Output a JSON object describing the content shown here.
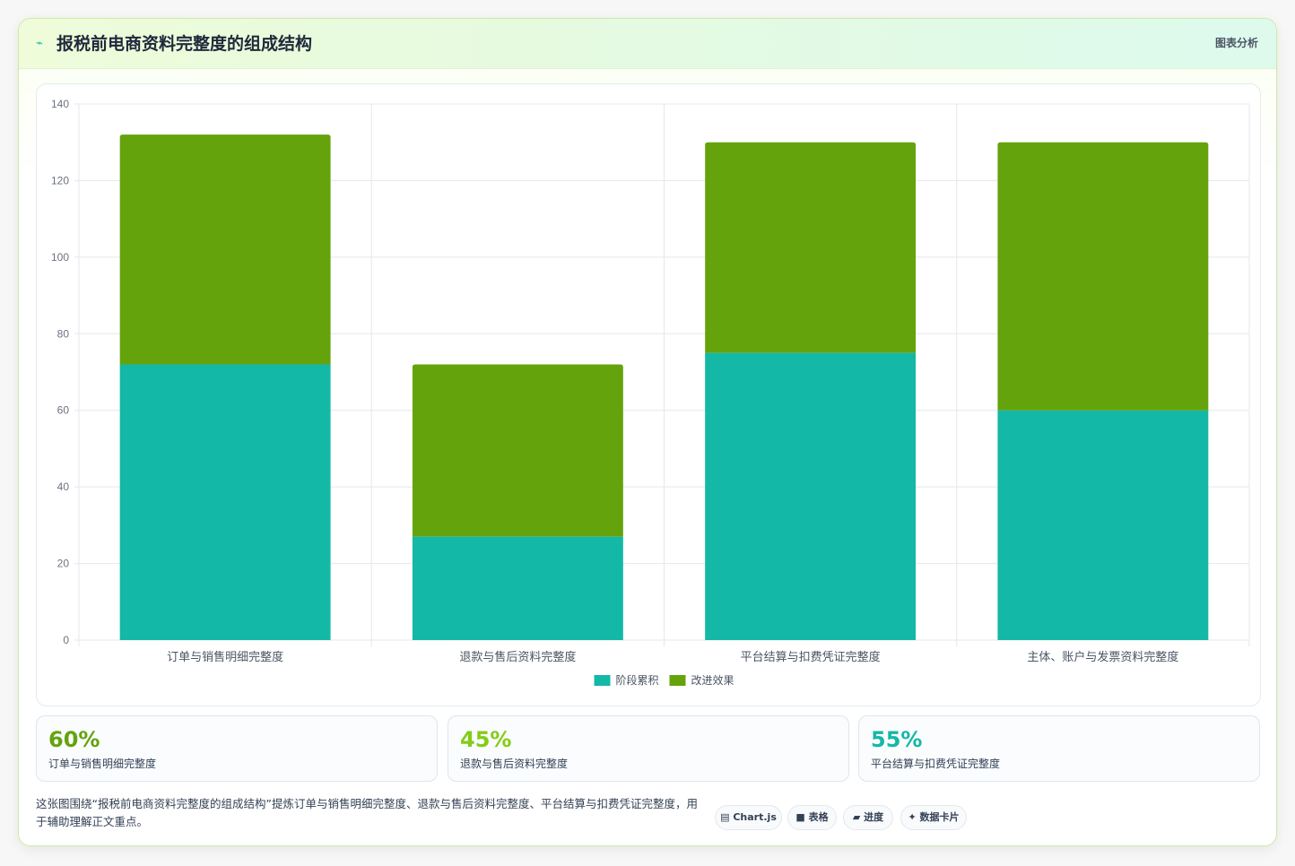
{
  "header": {
    "icon": "trend-icon",
    "title": "报税前电商资料完整度的组成结构",
    "link_label": "图表分析"
  },
  "chart_data": {
    "type": "bar",
    "stacked": true,
    "categories": [
      "订单与销售明细完整度",
      "退款与售后资料完整度",
      "平台结算与扣费凭证完整度",
      "主体、账户与发票资料完整度"
    ],
    "series": [
      {
        "name": "阶段累积",
        "color": "#14b8a6",
        "values": [
          72,
          27,
          75,
          60
        ]
      },
      {
        "name": "改进效果",
        "color": "#65a30d",
        "values": [
          60,
          45,
          55,
          70
        ]
      }
    ],
    "ylim": [
      0,
      140
    ],
    "yticks": [
      0,
      20,
      40,
      60,
      80,
      100,
      120,
      140
    ],
    "grid": true,
    "legend_position": "bottom"
  },
  "stats": [
    {
      "value": "60%",
      "label": "订单与销售明细完整度",
      "color": "#65a30d"
    },
    {
      "value": "45%",
      "label": "退款与售后资料完整度",
      "color": "#84cc16"
    },
    {
      "value": "55%",
      "label": "平台结算与扣费凭证完整度",
      "color": "#14b8a6"
    }
  ],
  "description": "这张图围绕“报税前电商资料完整度的组成结构”提炼订单与销售明细完整度、退款与售后资料完整度、平台结算与扣费凭证完整度，用于辅助理解正文重点。",
  "tags": [
    {
      "icon": "chart-icon",
      "glyph": "▤",
      "label": "Chart.js"
    },
    {
      "icon": "table-icon",
      "glyph": "■",
      "label": "表格"
    },
    {
      "icon": "progress-icon",
      "glyph": "▰",
      "label": "进度"
    },
    {
      "icon": "card-icon",
      "glyph": "✦",
      "label": "数据卡片"
    }
  ]
}
